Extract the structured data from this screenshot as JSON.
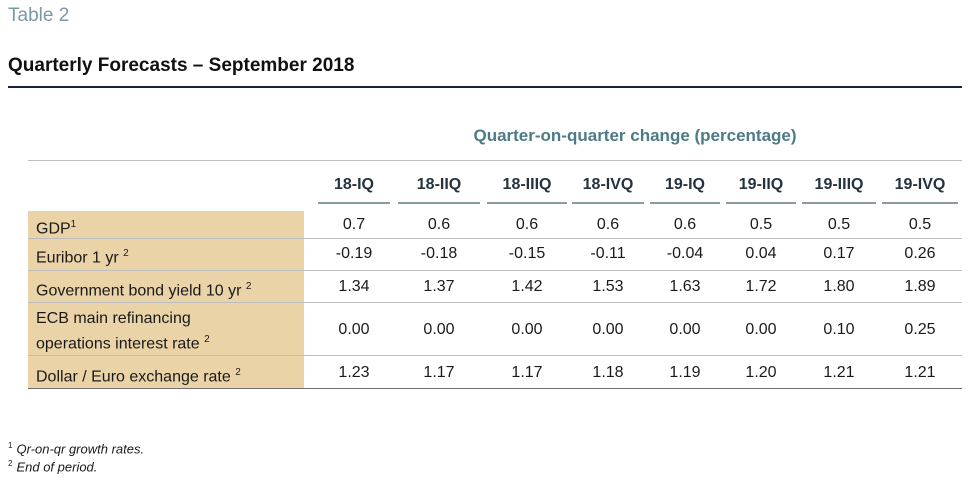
{
  "table_label": "Table 2",
  "title": "Quarterly Forecasts – September 2018",
  "span_header": "Quarter-on-quarter change (percentage)",
  "columns": [
    "18-IQ",
    "18-IIQ",
    "18-IIIQ",
    "18-IVQ",
    "19-IQ",
    "19-IIQ",
    "19-IIIQ",
    "19-IVQ"
  ],
  "rows": [
    {
      "label": "GDP",
      "note": "1",
      "values": [
        "0.7",
        "0.6",
        "0.6",
        "0.6",
        "0.6",
        "0.5",
        "0.5",
        "0.5"
      ]
    },
    {
      "label": "Euribor 1 yr",
      "note": "2",
      "values": [
        "-0.19",
        "-0.18",
        "-0.15",
        "-0.11",
        "-0.04",
        "0.04",
        "0.17",
        "0.26"
      ]
    },
    {
      "label": "Government bond yield 10 yr",
      "note": "2",
      "values": [
        "1.34",
        "1.37",
        "1.42",
        "1.53",
        "1.63",
        "1.72",
        "1.80",
        "1.89"
      ]
    },
    {
      "label_lines": [
        "ECB main refinancing",
        "operations interest rate"
      ],
      "note": "2",
      "values": [
        "0.00",
        "0.00",
        "0.00",
        "0.00",
        "0.00",
        "0.00",
        "0.10",
        "0.25"
      ]
    },
    {
      "label": "Dollar / Euro exchange rate",
      "note": "2",
      "values": [
        "1.23",
        "1.17",
        "1.17",
        "1.18",
        "1.19",
        "1.20",
        "1.21",
        "1.21"
      ]
    }
  ],
  "footnotes": [
    {
      "mark": "1",
      "text": "Qr-on-qr growth rates."
    },
    {
      "mark": "2",
      "text": "End of period."
    }
  ]
}
